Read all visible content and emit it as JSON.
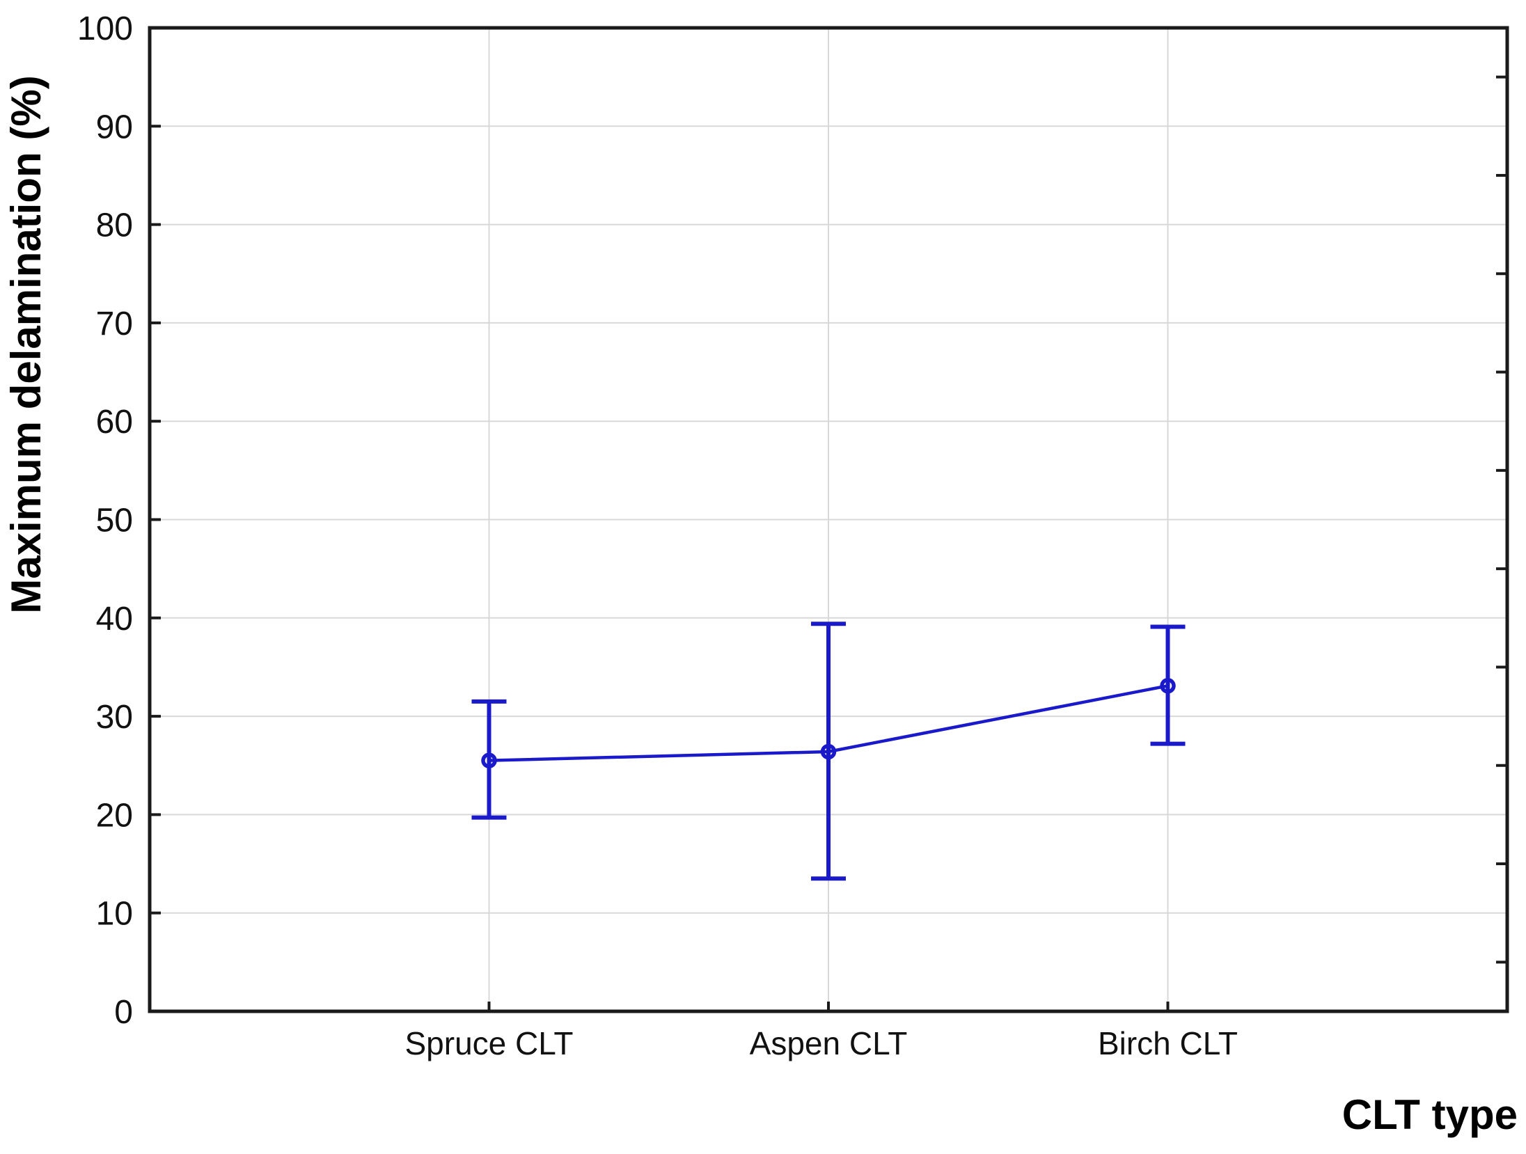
{
  "figure": {
    "background_color": "#ffffff",
    "axis_color": "#1a1a1a",
    "grid_color": "#d8d8d8",
    "series_color": "#1a1acb"
  },
  "chart_data": {
    "type": "line",
    "subtype": "means-with-error-bars",
    "title": "",
    "xlabel": "CLT type",
    "ylabel": "Maximum delamination (%)",
    "categories": [
      "Spruce CLT",
      "Aspen CLT",
      "Birch CLT"
    ],
    "series": [
      {
        "name": "Maximum delamination",
        "values": [
          25.5,
          26.4,
          33.1
        ],
        "whisker_top": [
          31.5,
          39.4,
          39.1
        ],
        "whisker_bottom": [
          19.7,
          13.5,
          27.2
        ]
      }
    ],
    "ylim": [
      0,
      100
    ],
    "y_major_step": 10,
    "y_minor_step": 5,
    "y_tick_labels": [
      "0",
      "10",
      "20",
      "30",
      "40",
      "50",
      "60",
      "70",
      "80",
      "90",
      "100"
    ],
    "grid": true,
    "gridlines": "horizontal-major and vertical-at-categories",
    "legend": "none",
    "marker": "open-circle",
    "marker_color": "#1a1acb",
    "line_color": "#1a1acb"
  }
}
